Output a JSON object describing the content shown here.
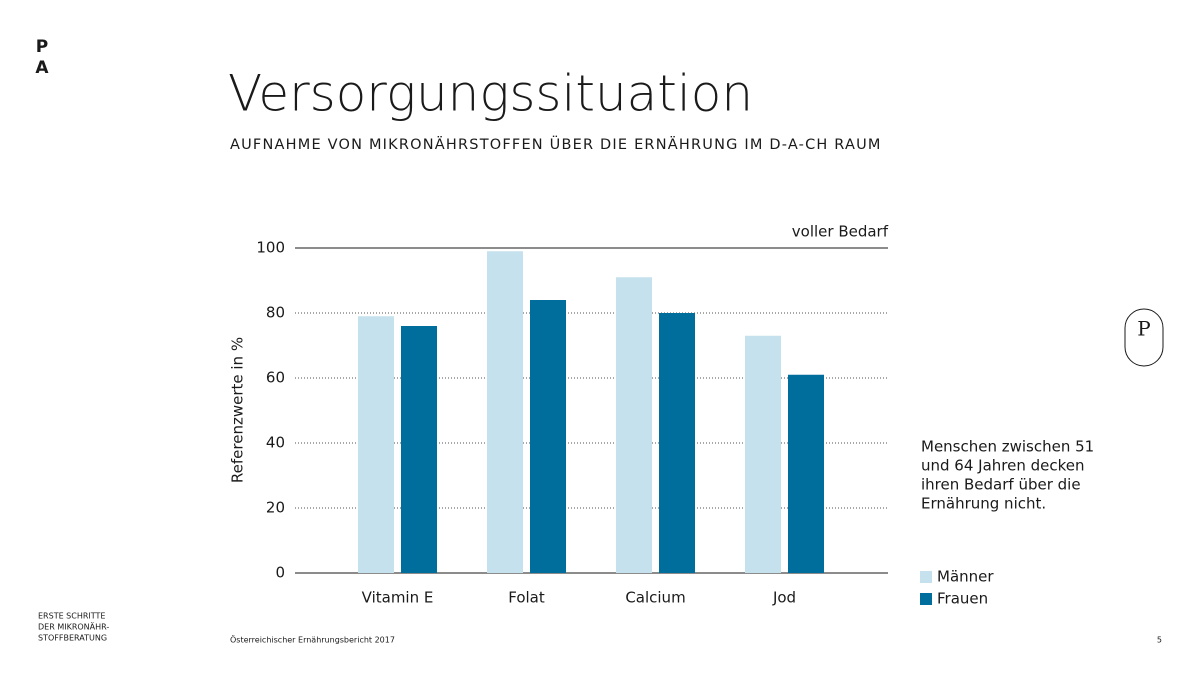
{
  "brand": {
    "letters": [
      "P",
      "A"
    ],
    "badge": "P"
  },
  "footer": {
    "series_lines": [
      "ERSTE SCHRITTE",
      "DER MIKRONÄHR-",
      "STOFFBERATUNG"
    ],
    "source": "Österreichischer Ernährungsbericht 2017",
    "page": "5"
  },
  "note_lines": [
    "Menschen zwischen 51",
    "und 64 Jahren decken",
    "ihren Bedarf über die",
    "Ernährung nicht."
  ],
  "chart_data": {
    "type": "bar",
    "title": "Versorgungssituation",
    "subtitle": "AUFNAHME VON MIKRONÄHRSTOFFEN ÜBER DIE ERNÄHRUNG IM D-A-CH RAUM",
    "y_label": "Referenzwerte in %",
    "categories": [
      "Vitamin E",
      "Folat",
      "Calcium",
      "Jod"
    ],
    "series": [
      {
        "name": "Männer",
        "color": "#c5e1ee",
        "values": [
          79,
          99,
          91,
          73
        ]
      },
      {
        "name": "Frauen",
        "color": "#006e9c",
        "values": [
          76,
          84,
          80,
          61
        ]
      }
    ],
    "ylim": [
      0,
      100
    ],
    "yticks": [
      0,
      20,
      40,
      60,
      80,
      100
    ],
    "grid": true,
    "reference_line": {
      "value": 100,
      "label": "voller Bedarf"
    },
    "legend": "bottom-right"
  }
}
